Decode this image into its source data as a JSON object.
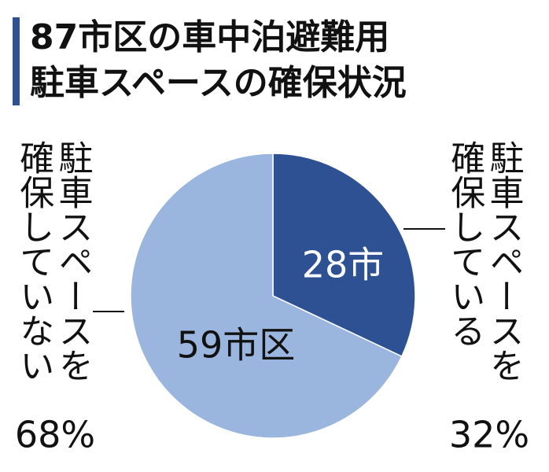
{
  "chart_data": {
    "type": "pie",
    "title_lines": [
      "87市区の車中泊避難用",
      "駐車スペースの確保状況"
    ],
    "categories": [
      "駐車スペースを確保している",
      "駐車スペースを確保していない"
    ],
    "values": [
      32,
      68
    ],
    "value_labels": [
      "32%",
      "68%"
    ],
    "slice_labels": [
      "28市",
      "59市区"
    ],
    "colors": [
      "#2d5193",
      "#9bb6de"
    ]
  }
}
